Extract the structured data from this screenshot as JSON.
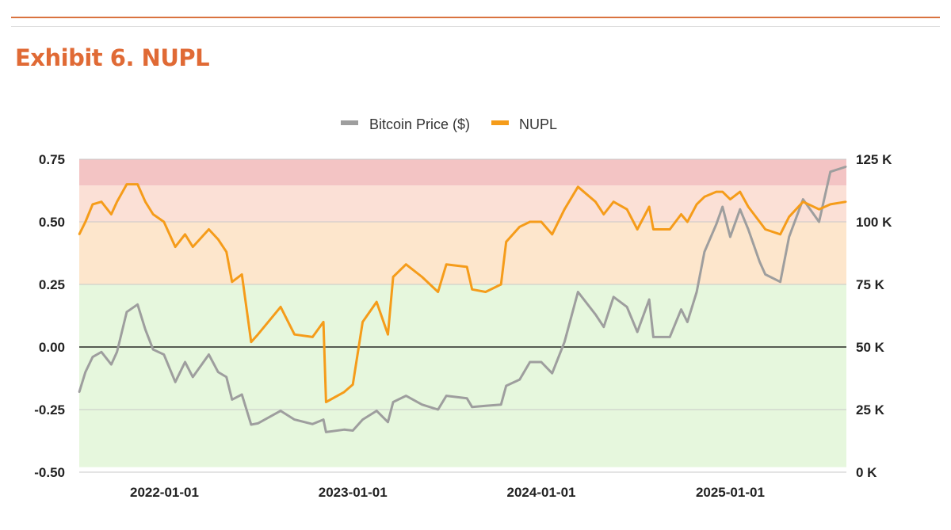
{
  "header": {
    "title": "Exhibit 6. NUPL"
  },
  "chart_data": {
    "type": "line",
    "title": "",
    "legend": {
      "placement": "top",
      "entries": [
        "Bitcoin Price ($)",
        "NUPL"
      ]
    },
    "colors": {
      "Bitcoin Price ($)": "#9e9e9e",
      "NUPL": "#f59c1a",
      "zero_line": "#000000"
    },
    "x_ticks": [
      "2022-01-01",
      "2023-01-01",
      "2024-01-01",
      "2025-01-01"
    ],
    "xlim": [
      "2021-07-20",
      "2025-08-14"
    ],
    "y_left": {
      "ticks": [
        "0.75",
        "0.50",
        "0.25",
        "0.00",
        "-0.25",
        "-0.50"
      ],
      "ylim": [
        -0.5,
        0.75
      ]
    },
    "y_right": {
      "ticks": [
        "125 K",
        "100 K",
        "75 K",
        "50 K",
        "25 K",
        "0 K"
      ],
      "ylim": [
        0,
        125000
      ]
    },
    "bands": [
      {
        "from": 0.645,
        "to": 0.75,
        "color": "#f3c4c4"
      },
      {
        "from": 0.5,
        "to": 0.645,
        "color": "#fbe0d6"
      },
      {
        "from": 0.25,
        "to": 0.5,
        "color": "#fde6cc"
      },
      {
        "from": -0.48,
        "to": 0.25,
        "color": "#e6f7dd"
      }
    ],
    "grid": true,
    "dates": [
      "2021-07-20",
      "2021-08-01",
      "2021-08-15",
      "2021-09-01",
      "2021-09-20",
      "2021-10-01",
      "2021-10-20",
      "2021-11-10",
      "2021-11-25",
      "2021-12-10",
      "2021-12-31",
      "2022-01-22",
      "2022-02-10",
      "2022-02-25",
      "2022-03-28",
      "2022-04-15",
      "2022-05-01",
      "2022-05-12",
      "2022-05-31",
      "2022-06-18",
      "2022-07-01",
      "2022-08-14",
      "2022-09-10",
      "2022-10-15",
      "2022-11-05",
      "2022-11-10",
      "2022-12-15",
      "2023-01-01",
      "2023-01-20",
      "2023-02-16",
      "2023-03-10",
      "2023-03-20",
      "2023-04-14",
      "2023-05-15",
      "2023-06-15",
      "2023-07-01",
      "2023-08-10",
      "2023-08-20",
      "2023-09-15",
      "2023-10-15",
      "2023-10-25",
      "2023-11-20",
      "2023-12-10",
      "2024-01-01",
      "2024-01-22",
      "2024-02-15",
      "2024-03-12",
      "2024-04-15",
      "2024-05-01",
      "2024-05-20",
      "2024-06-15",
      "2024-07-05",
      "2024-07-28",
      "2024-08-05",
      "2024-09-06",
      "2024-09-28",
      "2024-10-10",
      "2024-10-28",
      "2024-11-12",
      "2024-12-05",
      "2024-12-17",
      "2025-01-01",
      "2025-01-20",
      "2025-02-05",
      "2025-02-27",
      "2025-03-10",
      "2025-04-08",
      "2025-04-25",
      "2025-05-22",
      "2025-06-22",
      "2025-07-14",
      "2025-08-13"
    ],
    "series": [
      {
        "name": "Bitcoin Price ($)",
        "axis": "right",
        "values": [
          32000,
          40000,
          46000,
          48000,
          43000,
          48000,
          64000,
          67000,
          57000,
          49000,
          47000,
          36000,
          44000,
          38000,
          47000,
          40000,
          38000,
          29000,
          31000,
          19000,
          19500,
          24500,
          21000,
          19200,
          21000,
          16000,
          17000,
          16600,
          21000,
          24500,
          20000,
          28000,
          30500,
          27000,
          25000,
          30500,
          29500,
          26000,
          26500,
          27000,
          34500,
          37000,
          44000,
          44000,
          39500,
          52000,
          72000,
          63000,
          58000,
          70000,
          66000,
          56000,
          69000,
          54000,
          54000,
          65000,
          60000,
          72000,
          88000,
          99000,
          106000,
          94000,
          105000,
          97000,
          84000,
          79000,
          76000,
          94000,
          109000,
          100000,
          120000,
          122000
        ]
      },
      {
        "name": "NUPL",
        "axis": "left",
        "values": [
          0.45,
          0.5,
          0.57,
          0.58,
          0.53,
          0.58,
          0.65,
          0.65,
          0.58,
          0.53,
          0.5,
          0.4,
          0.45,
          0.4,
          0.47,
          0.43,
          0.38,
          0.26,
          0.29,
          0.02,
          0.05,
          0.16,
          0.05,
          0.04,
          0.1,
          -0.22,
          -0.18,
          -0.15,
          0.1,
          0.18,
          0.05,
          0.28,
          0.33,
          0.28,
          0.22,
          0.33,
          0.32,
          0.23,
          0.22,
          0.25,
          0.42,
          0.48,
          0.5,
          0.5,
          0.45,
          0.55,
          0.64,
          0.58,
          0.53,
          0.58,
          0.55,
          0.47,
          0.56,
          0.47,
          0.47,
          0.53,
          0.5,
          0.57,
          0.6,
          0.62,
          0.62,
          0.59,
          0.62,
          0.56,
          0.5,
          0.47,
          0.45,
          0.52,
          0.58,
          0.55,
          0.57,
          0.58
        ]
      }
    ]
  }
}
